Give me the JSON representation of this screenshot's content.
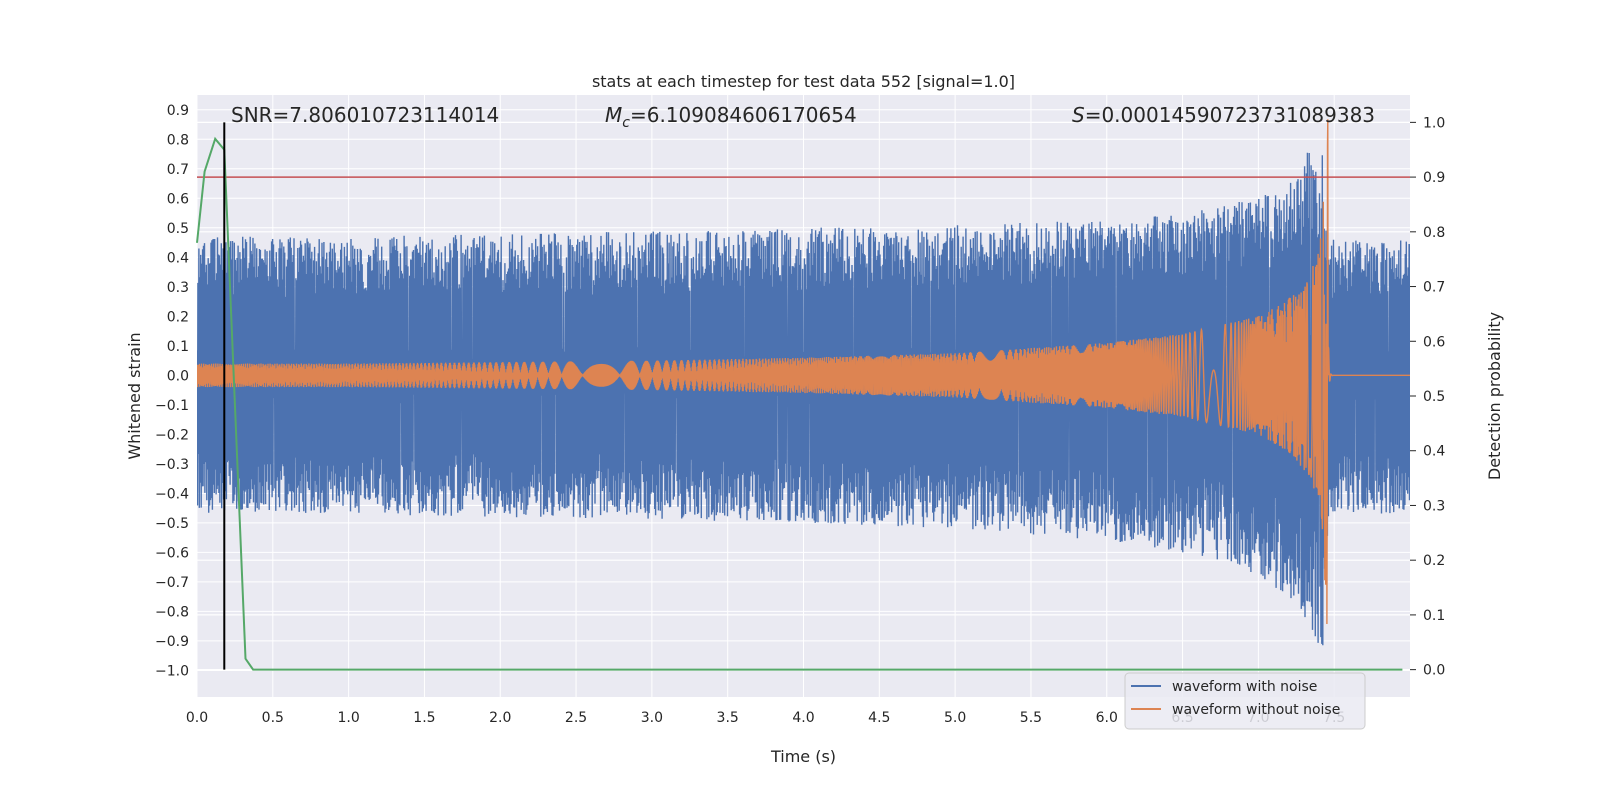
{
  "chart_data": {
    "type": "line",
    "title": "stats at each timestep for test data 552 [signal=1.0]",
    "xlabel": "Time (s)",
    "ylabel": "Whitened strain",
    "ylabel_right": "Detection probability",
    "xlim": [
      0.0,
      8.0
    ],
    "ylim": [
      -1.09,
      0.95
    ],
    "ylim_right": [
      -0.05,
      1.05
    ],
    "x_ticks": [
      "0.0",
      "0.5",
      "1.0",
      "1.5",
      "2.0",
      "2.5",
      "3.0",
      "3.5",
      "4.0",
      "4.5",
      "5.0",
      "5.5",
      "6.0",
      "6.5",
      "7.0",
      "7.5"
    ],
    "y_ticks": [
      "0.9",
      "0.8",
      "0.7",
      "0.6",
      "0.5",
      "0.4",
      "0.3",
      "0.2",
      "0.1",
      "0.0",
      "−0.1",
      "−0.2",
      "−0.3",
      "−0.4",
      "−0.5",
      "−0.6",
      "−0.7",
      "−0.8",
      "−0.9",
      "−1.0"
    ],
    "y_ticks_right": [
      "0.0",
      "0.1",
      "0.2",
      "0.3",
      "0.4",
      "0.5",
      "0.6",
      "0.7",
      "0.8",
      "0.9",
      "1.0"
    ],
    "annotations": {
      "snr": "SNR=7.806010723114014",
      "mc_symbol": "M",
      "mc_subscript": "c",
      "mc_value": "=6.109084606170654",
      "s_symbol": "S",
      "s_value": "=0.00014590723731089383"
    },
    "series": [
      {
        "name": "waveform with noise",
        "color": "#4c72b0",
        "description": "noisy whitened strain; envelope amplitude (strain units) vs time",
        "envelope": {
          "t": [
            0.0,
            1.0,
            2.0,
            3.0,
            4.0,
            5.0,
            6.0,
            6.5,
            7.0,
            7.2,
            7.35,
            7.42,
            7.46,
            7.48,
            8.0
          ],
          "upper": [
            0.47,
            0.47,
            0.48,
            0.49,
            0.5,
            0.51,
            0.53,
            0.55,
            0.6,
            0.66,
            0.78,
            0.82,
            0.5,
            0.46,
            0.46
          ],
          "lower": [
            -0.47,
            -0.47,
            -0.48,
            -0.49,
            -0.5,
            -0.52,
            -0.56,
            -0.6,
            -0.68,
            -0.75,
            -0.85,
            -0.98,
            -0.5,
            -0.47,
            -0.47
          ]
        }
      },
      {
        "name": "waveform without noise",
        "color": "#dd8452",
        "description": "clean chirp waveform, merger at ~7.46 s",
        "merger_time": 7.46,
        "envelope": {
          "t": [
            0.0,
            1.0,
            2.0,
            3.0,
            4.0,
            5.0,
            6.0,
            6.5,
            7.0,
            7.2,
            7.35,
            7.42,
            7.46
          ],
          "amp": [
            0.04,
            0.04,
            0.045,
            0.05,
            0.06,
            0.075,
            0.11,
            0.14,
            0.2,
            0.26,
            0.35,
            0.5,
            0.95
          ]
        },
        "post_merger_level": 0.0
      },
      {
        "name": "detection probability",
        "color": "#55a868",
        "axis": "right",
        "x": [
          0.0,
          0.05,
          0.12,
          0.18,
          0.32,
          0.37,
          0.5,
          7.95
        ],
        "y": [
          0.78,
          0.91,
          0.97,
          0.95,
          0.02,
          0.0,
          0.0,
          0.0
        ]
      }
    ],
    "threshold_line": {
      "axis": "right",
      "value": 0.9,
      "color": "#c44e52"
    },
    "vertical_line": {
      "x": 0.18,
      "color": "#000000"
    },
    "legend": {
      "position": "lower-right",
      "entries": [
        {
          "label": "waveform with noise",
          "color": "#4c72b0"
        },
        {
          "label": "waveform without noise",
          "color": "#dd8452"
        }
      ]
    },
    "grid": true,
    "style": {
      "axes_bg": "#eaeaf2",
      "grid_color": "#ffffff"
    }
  }
}
